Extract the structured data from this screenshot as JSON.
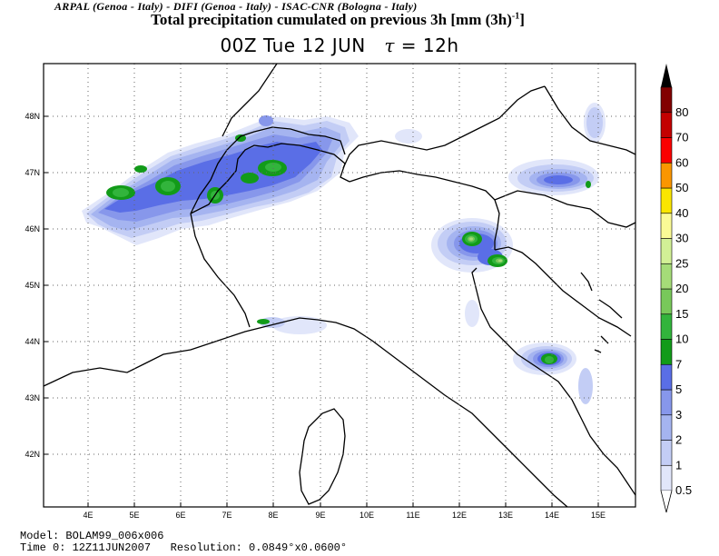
{
  "header": {
    "credits": "ARPAL (Genoa - Italy)  -  DIFI (Genoa - Italy)  -  ISAC-CNR (Bologna - Italy)",
    "title": "Total precipitation cumulated on previous 3h [mm (3h)",
    "title_sup": "-1",
    "title_end": "]",
    "subtitle_time": "00Z Tue 12 JUN",
    "subtitle_tau_symbol": "τ",
    "subtitle_tau_value": " = 12h"
  },
  "map": {
    "lon_labels": [
      "4E",
      "5E",
      "6E",
      "7E",
      "8E",
      "9E",
      "10E",
      "11E",
      "12E",
      "13E",
      "14E",
      "15E"
    ],
    "lat_labels": [
      "48N",
      "47N",
      "46N",
      "45N",
      "44N",
      "43N",
      "42N"
    ],
    "precip_colors": {
      "p05": "#e1e6fa",
      "p1": "#c3cdf5",
      "p2": "#a5b4f0",
      "p3": "#8797eb",
      "p5": "#5a6ee6",
      "p7": "#129b19",
      "p10": "#32b43c",
      "p15": "#78c85a",
      "p20": "#a5dc78",
      "p25": "#d2f096"
    }
  },
  "colorbar": {
    "levels": [
      {
        "label": "0.5",
        "color": "#e1e6fa"
      },
      {
        "label": "1",
        "color": "#c3cdf5"
      },
      {
        "label": "2",
        "color": "#a5b4f0"
      },
      {
        "label": "3",
        "color": "#8797eb"
      },
      {
        "label": "5",
        "color": "#5a6ee6"
      },
      {
        "label": "7",
        "color": "#129b19"
      },
      {
        "label": "10",
        "color": "#32b43c"
      },
      {
        "label": "15",
        "color": "#78c85a"
      },
      {
        "label": "20",
        "color": "#a5dc78"
      },
      {
        "label": "25",
        "color": "#d2f096"
      },
      {
        "label": "30",
        "color": "#fafa96"
      },
      {
        "label": "40",
        "color": "#fae600"
      },
      {
        "label": "50",
        "color": "#fa9600"
      },
      {
        "label": "60",
        "color": "#fa0000"
      },
      {
        "label": "70",
        "color": "#c30000"
      },
      {
        "label": "80",
        "color": "#820000"
      }
    ],
    "top_color": "#000000"
  },
  "footer": {
    "model": "Model: BOLAM99_006x006",
    "time": "Time 0: 12Z11JUN2007",
    "resolution": "Resolution: 0.0849°x0.0600°"
  }
}
